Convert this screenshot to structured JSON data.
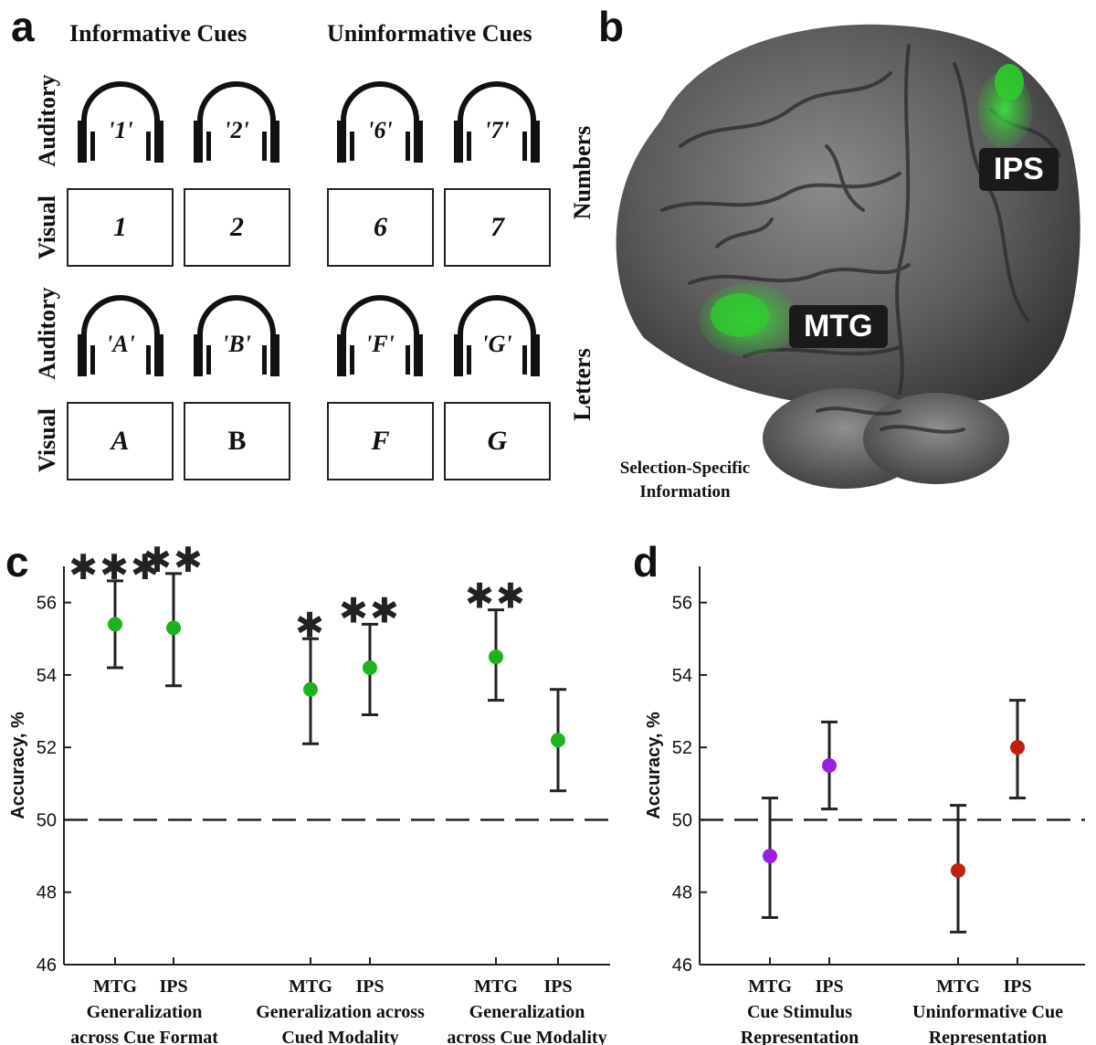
{
  "panel_a": {
    "letter": "a",
    "col_headers": [
      "Informative Cues",
      "Uninformative Cues"
    ],
    "row_labels": [
      "Auditory",
      "Visual",
      "Auditory",
      "Visual"
    ],
    "numbers_audio": [
      "'1'",
      "'2'",
      "'6'",
      "'7'"
    ],
    "numbers_visual": [
      "1",
      "2",
      "6",
      "7"
    ],
    "letters_audio": [
      "'A'",
      "'B'",
      "'F'",
      "'G'"
    ],
    "letters_visual": [
      "A",
      "B",
      "F",
      "G"
    ],
    "icon": "headphones-icon"
  },
  "panel_b": {
    "letter": "b",
    "side_labels": [
      "Numbers",
      "Letters"
    ],
    "regions": [
      "IPS",
      "MTG"
    ],
    "caption_line1": "Selection-Specific",
    "caption_line2": "Information",
    "highlight_color": "#2ecc2e"
  },
  "panel_c": {
    "letter": "c",
    "chart_data": {
      "type": "scatter",
      "ylabel": "Accuracy, %",
      "ylim": [
        46,
        57
      ],
      "yticks": [
        46,
        48,
        50,
        52,
        54,
        56
      ],
      "chance_level": 50,
      "point_color": "#1db31d",
      "groups": [
        {
          "label1": "Generalization",
          "label2": "across Cue Format",
          "points": [
            {
              "region": "MTG",
              "value": 55.4,
              "err_low": 54.2,
              "err_high": 56.6,
              "sig": "***"
            },
            {
              "region": "IPS",
              "value": 55.3,
              "err_low": 53.7,
              "err_high": 56.8,
              "sig": "**"
            }
          ]
        },
        {
          "label1": "Generalization across",
          "label2": "Cued Modality",
          "points": [
            {
              "region": "MTG",
              "value": 53.6,
              "err_low": 52.1,
              "err_high": 55.0,
              "sig": "*"
            },
            {
              "region": "IPS",
              "value": 54.2,
              "err_low": 52.9,
              "err_high": 55.4,
              "sig": "**"
            }
          ]
        },
        {
          "label1": "Generalization",
          "label2": "across Cue Modality",
          "points": [
            {
              "region": "MTG",
              "value": 54.5,
              "err_low": 53.3,
              "err_high": 55.8,
              "sig": "**"
            },
            {
              "region": "IPS",
              "value": 52.2,
              "err_low": 50.8,
              "err_high": 53.6,
              "sig": ""
            }
          ]
        }
      ]
    }
  },
  "panel_d": {
    "letter": "d",
    "chart_data": {
      "type": "scatter",
      "ylabel": "Accuracy, %",
      "ylim": [
        46,
        57
      ],
      "yticks": [
        46,
        48,
        50,
        52,
        54,
        56
      ],
      "chance_level": 50,
      "groups": [
        {
          "label1": "Cue Stimulus",
          "label2": "Representation",
          "color": "#9b1fe0",
          "points": [
            {
              "region": "MTG",
              "value": 49.0,
              "err_low": 47.3,
              "err_high": 50.6,
              "sig": ""
            },
            {
              "region": "IPS",
              "value": 51.5,
              "err_low": 50.3,
              "err_high": 52.7,
              "sig": ""
            }
          ]
        },
        {
          "label1": "Uninformative Cue",
          "label2": "Representation",
          "color": "#c0200d",
          "points": [
            {
              "region": "MTG",
              "value": 48.6,
              "err_low": 46.9,
              "err_high": 50.4,
              "sig": ""
            },
            {
              "region": "IPS",
              "value": 52.0,
              "err_low": 50.6,
              "err_high": 53.3,
              "sig": ""
            }
          ]
        }
      ]
    }
  }
}
